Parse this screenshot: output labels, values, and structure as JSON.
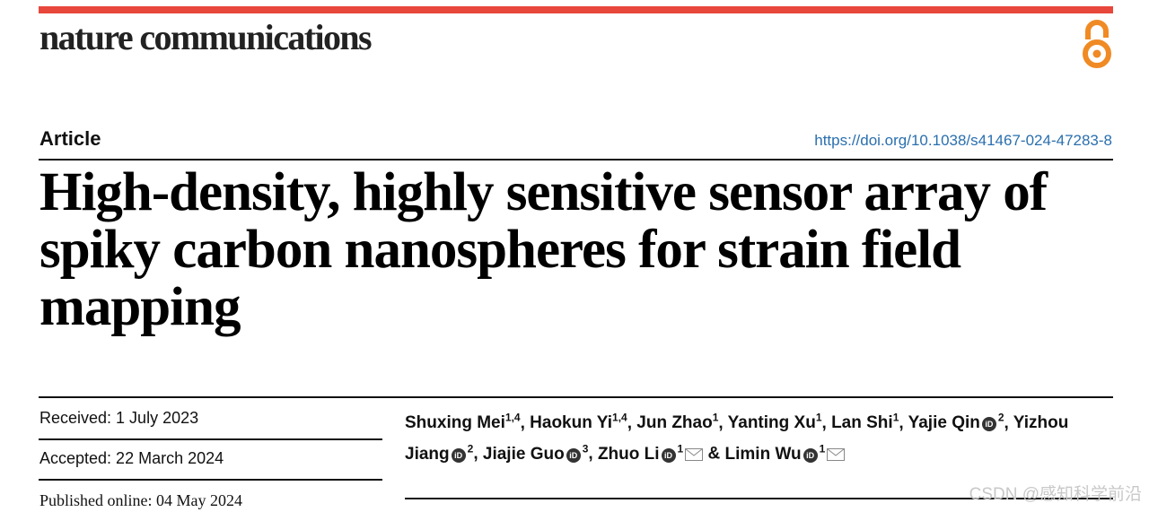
{
  "colors": {
    "accent_red": "#e8473c",
    "oa_orange": "#f08a24",
    "doi_blue": "#2a6fae"
  },
  "header": {
    "journal": "nature communications",
    "oa_icon": "open-access-icon"
  },
  "article": {
    "type": "Article",
    "doi": "https://doi.org/10.1038/s41467-024-47283-8",
    "title": "High-density, highly sensitive sensor array of spiky carbon nanospheres for strain field mapping"
  },
  "dates": {
    "received": "Received: 1 July 2023",
    "accepted": "Accepted: 22 March 2024",
    "published": "Published online: 04 May 2024"
  },
  "authors": [
    {
      "name": "Shuxing Mei",
      "aff": "1,4"
    },
    {
      "name": "Haokun Yi",
      "aff": "1,4"
    },
    {
      "name": "Jun Zhao",
      "aff": "1"
    },
    {
      "name": "Yanting Xu",
      "aff": "1"
    },
    {
      "name": "Lan Shi",
      "aff": "1"
    },
    {
      "name": "Yajie Qin",
      "aff": "2"
    },
    {
      "name": "Yizhou Jiang",
      "aff": "2"
    },
    {
      "name": "Jiajie Guo",
      "aff": "3"
    },
    {
      "name": "Zhuo Li",
      "aff": "1"
    },
    {
      "name": "Limin Wu",
      "aff": "1"
    }
  ],
  "separators": {
    "comma": ",",
    "amp": "&"
  },
  "watermark": "CSDN @感知科学前沿"
}
